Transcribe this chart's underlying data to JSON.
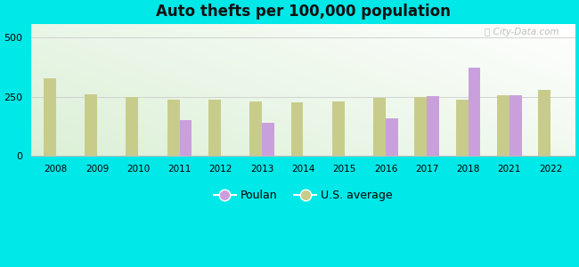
{
  "title": "Auto thefts per 100,000 population",
  "years": [
    2008,
    2009,
    2010,
    2011,
    2012,
    2013,
    2014,
    2015,
    2016,
    2017,
    2018,
    2021,
    2022
  ],
  "poulan": [
    null,
    null,
    null,
    150,
    null,
    140,
    null,
    null,
    160,
    252,
    375,
    258,
    null
  ],
  "us_avg": [
    330,
    260,
    248,
    238,
    237,
    232,
    225,
    232,
    245,
    248,
    237,
    258,
    280
  ],
  "poulan_color": "#c9a0dc",
  "us_avg_color": "#c8cc8a",
  "outer_bg": "#00e8e8",
  "ylim": [
    0,
    560
  ],
  "yticks": [
    0,
    250,
    500
  ],
  "bar_width": 0.3,
  "legend_poulan": "Poulan",
  "legend_us": "U.S. average"
}
